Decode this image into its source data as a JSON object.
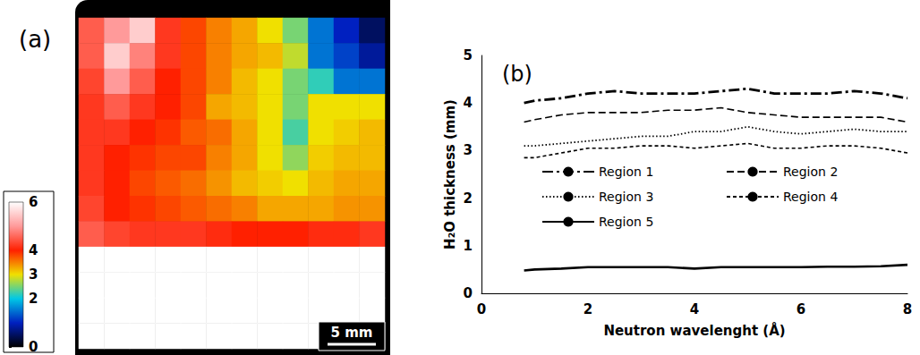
{
  "chart_data": [
    {
      "type": "heatmap",
      "title": "(a)",
      "annotations": [
        "5 mm"
      ],
      "cells": [
        [
          4.5,
          5,
          5.5,
          4.2,
          3.8,
          3.5,
          3.3,
          3,
          2.5,
          1.5,
          1,
          0.5
        ],
        [
          4.5,
          5.5,
          4.8,
          4.2,
          3.8,
          3.5,
          3.3,
          3.2,
          2.8,
          1.5,
          1.2,
          0.8
        ],
        [
          4.3,
          5,
          4.5,
          4,
          3.8,
          3.5,
          3.2,
          3,
          2.5,
          2.2,
          1.5,
          1.5
        ],
        [
          4.2,
          4.5,
          4.2,
          4,
          3.8,
          3.3,
          3.2,
          3,
          2.5,
          3,
          3,
          3
        ],
        [
          4.2,
          4.2,
          4,
          3.9,
          3.7,
          3.6,
          3.3,
          3,
          2.3,
          3,
          3.1,
          3.2
        ],
        [
          4.2,
          4,
          3.9,
          3.8,
          3.8,
          3.5,
          3.3,
          3,
          2.6,
          3.1,
          3.2,
          3.2
        ],
        [
          4.2,
          4,
          3.8,
          3.7,
          3.6,
          3.4,
          3.2,
          3.1,
          3,
          3.2,
          3.3,
          3.3
        ],
        [
          4.3,
          4,
          3.9,
          3.8,
          3.7,
          3.6,
          3.5,
          3.3,
          3.3,
          3.3,
          3.4,
          3.4
        ],
        [
          4.5,
          4.3,
          4.2,
          4.2,
          4.2,
          4.1,
          4,
          4,
          4,
          4.1,
          4.1,
          4.2
        ],
        [
          6,
          6,
          6,
          6,
          6,
          6,
          6,
          6,
          6,
          6,
          6,
          6
        ],
        [
          6,
          6,
          6,
          6,
          6,
          6,
          6,
          6,
          6,
          6,
          6,
          6
        ],
        [
          6,
          6,
          6,
          6,
          6,
          6,
          6,
          6,
          6,
          6,
          6,
          6
        ],
        [
          6,
          6,
          6,
          6,
          6,
          6,
          6,
          6,
          6,
          6,
          6,
          6
        ]
      ],
      "colorbar_range": [
        0,
        6
      ],
      "colorbar_ticks": [
        0,
        2,
        3,
        4,
        6
      ],
      "tick_labels": false
    },
    {
      "type": "line",
      "title": "(b)",
      "x_label": "Neutron wavelenght (Å)",
      "y_label": "H₂O thickness (mm)",
      "x": [
        0.8,
        1,
        1.5,
        2,
        2.5,
        3,
        3.5,
        4,
        4.5,
        5,
        5.5,
        6,
        6.5,
        7,
        7.5,
        8
      ],
      "series": [
        {
          "name": "Region 1",
          "color": "#000000",
          "line_style": "dashdot",
          "values": [
            4.0,
            4.05,
            4.1,
            4.2,
            4.25,
            4.2,
            4.2,
            4.2,
            4.25,
            4.3,
            4.2,
            4.2,
            4.2,
            4.25,
            4.2,
            4.1
          ]
        },
        {
          "name": "Region 2",
          "color": "#000000",
          "line_style": "longdash",
          "values": [
            3.6,
            3.65,
            3.75,
            3.8,
            3.8,
            3.8,
            3.85,
            3.85,
            3.9,
            3.8,
            3.75,
            3.7,
            3.7,
            3.7,
            3.7,
            3.6
          ]
        },
        {
          "name": "Region 3",
          "color": "#000000",
          "line_style": "dotted",
          "values": [
            3.1,
            3.1,
            3.15,
            3.2,
            3.25,
            3.3,
            3.3,
            3.4,
            3.4,
            3.5,
            3.4,
            3.35,
            3.4,
            3.45,
            3.4,
            3.4
          ]
        },
        {
          "name": "Region 4",
          "color": "#000000",
          "line_style": "dashed",
          "values": [
            2.85,
            2.85,
            2.95,
            3.05,
            3.05,
            3.1,
            3.1,
            3.05,
            3.1,
            3.15,
            3.05,
            3.05,
            3.1,
            3.1,
            3.05,
            2.95
          ]
        },
        {
          "name": "Region 5",
          "color": "#000000",
          "line_style": "solid",
          "values": [
            0.48,
            0.5,
            0.52,
            0.55,
            0.55,
            0.55,
            0.55,
            0.52,
            0.55,
            0.55,
            0.55,
            0.55,
            0.56,
            0.56,
            0.57,
            0.6
          ]
        }
      ],
      "xlim": [
        0,
        8
      ],
      "xticks": [
        0,
        2,
        4,
        6,
        8
      ],
      "ylim": [
        0,
        5
      ],
      "yticks": [
        0,
        1,
        2,
        3,
        4,
        5
      ],
      "grid": false,
      "legend": "center"
    }
  ]
}
